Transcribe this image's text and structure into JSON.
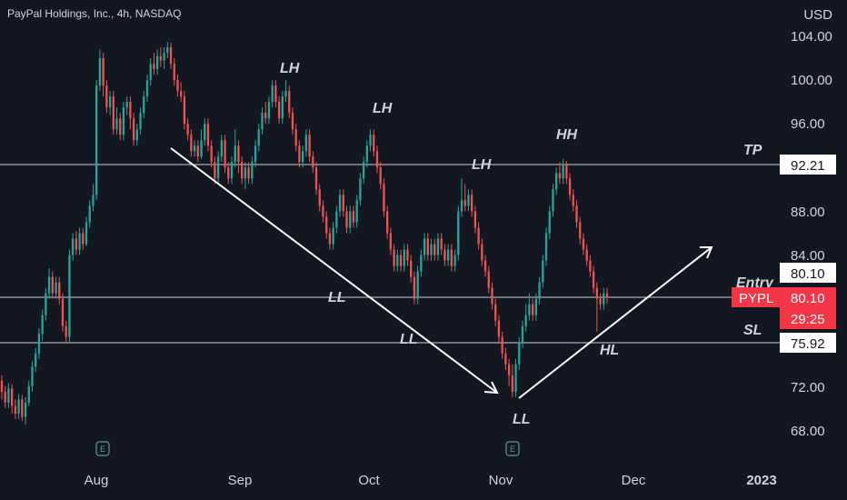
{
  "header": {
    "title": "PayPal Holdings, Inc., 4h, NASDAQ",
    "currency": "USD"
  },
  "chart_data": {
    "type": "candlestick",
    "ylim": [
      66.5,
      105.5
    ],
    "y_ticks": [
      "104.00",
      "100.00",
      "96.00",
      "88.00",
      "84.00",
      "72.00",
      "68.00"
    ],
    "x_ticks": [
      "Aug",
      "Sep",
      "Oct",
      "Nov",
      "Dec",
      "2023"
    ],
    "colors": {
      "up": "#26a69a",
      "down": "#ef5350",
      "background": "#131722",
      "level_line": "#c8ccd6",
      "arrow": "#ffffff",
      "accent_label": "#f23645"
    },
    "levels": [
      {
        "name": "TP",
        "value": 92.21,
        "label": "92.21"
      },
      {
        "name": "Entry",
        "value": 80.1,
        "label": "80.10"
      },
      {
        "name": "SL",
        "value": 75.92,
        "label": "75.92"
      }
    ],
    "symbol_badge": {
      "symbol": "PYPL",
      "price": "80.10",
      "countdown": "29:25"
    },
    "annotations": [
      "LH",
      "LH",
      "LH",
      "HH",
      "LL",
      "LL",
      "LL",
      "HL"
    ],
    "earnings_markers": [
      "E",
      "E"
    ],
    "candles": [
      [
        72.5,
        71.5,
        73.0,
        70.8
      ],
      [
        71.5,
        70.5,
        72.0,
        70.0
      ],
      [
        70.5,
        71.8,
        72.3,
        70.0
      ],
      [
        71.8,
        70.2,
        72.2,
        69.5
      ],
      [
        70.2,
        69.5,
        70.8,
        69.0
      ],
      [
        69.5,
        70.8,
        71.3,
        69.0
      ],
      [
        70.8,
        69.2,
        71.2,
        68.8
      ],
      [
        69.2,
        70.5,
        71.0,
        68.5
      ],
      [
        70.5,
        72.0,
        72.5,
        70.2
      ],
      [
        72.0,
        73.8,
        74.3,
        71.5
      ],
      [
        73.8,
        75.0,
        75.5,
        73.3
      ],
      [
        75.0,
        76.8,
        77.3,
        74.5
      ],
      [
        76.8,
        78.5,
        79.0,
        76.2
      ],
      [
        78.5,
        80.5,
        81.0,
        78.0
      ],
      [
        80.5,
        82.0,
        82.8,
        80.0
      ],
      [
        82.0,
        80.5,
        82.5,
        80.0
      ],
      [
        80.5,
        81.5,
        82.0,
        80.0
      ],
      [
        81.5,
        80.0,
        82.0,
        79.5
      ],
      [
        80.0,
        77.5,
        80.5,
        77.0
      ],
      [
        77.5,
        76.5,
        78.0,
        76.0
      ],
      [
        76.5,
        84.0,
        84.5,
        76.0
      ],
      [
        84.0,
        85.5,
        86.0,
        83.5
      ],
      [
        85.5,
        84.5,
        86.2,
        84.0
      ],
      [
        84.5,
        86.0,
        86.5,
        84.0
      ],
      [
        86.0,
        85.0,
        86.5,
        84.5
      ],
      [
        85.0,
        87.0,
        87.5,
        84.8
      ],
      [
        87.0,
        88.5,
        89.0,
        86.5
      ],
      [
        88.5,
        89.5,
        90.5,
        88.0
      ],
      [
        89.5,
        99.5,
        100.0,
        89.0
      ],
      [
        99.5,
        102.0,
        102.8,
        99.0
      ],
      [
        102.0,
        99.5,
        102.5,
        98.5
      ],
      [
        99.5,
        97.5,
        100.0,
        97.0
      ],
      [
        97.5,
        98.5,
        99.0,
        96.8
      ],
      [
        98.5,
        95.5,
        99.0,
        95.0
      ],
      [
        95.5,
        96.5,
        97.5,
        95.0
      ],
      [
        96.5,
        95.0,
        97.0,
        94.5
      ],
      [
        95.0,
        97.5,
        98.0,
        94.5
      ],
      [
        97.5,
        98.0,
        98.5,
        96.8
      ],
      [
        98.0,
        96.5,
        98.5,
        95.5
      ],
      [
        96.5,
        94.5,
        97.0,
        94.0
      ],
      [
        94.5,
        95.5,
        96.0,
        94.0
      ],
      [
        95.5,
        97.0,
        97.5,
        95.0
      ],
      [
        97.0,
        98.5,
        99.0,
        96.5
      ],
      [
        98.5,
        100.0,
        100.5,
        98.0
      ],
      [
        100.0,
        101.5,
        102.0,
        99.5
      ],
      [
        101.5,
        101.0,
        102.5,
        100.5
      ],
      [
        101.0,
        102.2,
        102.8,
        100.5
      ],
      [
        102.2,
        101.8,
        103.0,
        101.2
      ],
      [
        101.8,
        102.5,
        103.0,
        101.0
      ],
      [
        102.5,
        103.0,
        103.5,
        102.0
      ],
      [
        103.0,
        101.5,
        103.4,
        101.0
      ],
      [
        101.5,
        100.0,
        102.0,
        99.5
      ],
      [
        100.0,
        99.0,
        100.5,
        98.5
      ],
      [
        99.0,
        98.5,
        99.8,
        98.0
      ],
      [
        98.5,
        96.0,
        99.0,
        95.5
      ],
      [
        96.0,
        95.0,
        96.5,
        94.5
      ],
      [
        95.0,
        93.5,
        95.5,
        93.0
      ],
      [
        93.5,
        94.0,
        94.5,
        93.0
      ],
      [
        94.0,
        93.0,
        94.5,
        92.5
      ],
      [
        93.0,
        94.5,
        95.5,
        92.8
      ],
      [
        94.5,
        96.0,
        96.5,
        94.0
      ],
      [
        96.0,
        94.0,
        96.5,
        93.5
      ],
      [
        94.0,
        92.5,
        94.5,
        92.0
      ],
      [
        92.5,
        91.0,
        93.0,
        90.5
      ],
      [
        91.0,
        93.0,
        93.5,
        90.5
      ],
      [
        93.0,
        94.5,
        95.0,
        92.5
      ],
      [
        94.5,
        92.0,
        95.0,
        91.5
      ],
      [
        92.0,
        91.0,
        92.5,
        90.5
      ],
      [
        91.0,
        92.5,
        93.0,
        90.5
      ],
      [
        92.5,
        94.0,
        95.5,
        92.0
      ],
      [
        94.0,
        92.5,
        94.5,
        91.5
      ],
      [
        92.5,
        91.0,
        93.0,
        90.5
      ],
      [
        91.0,
        92.0,
        92.5,
        90.0
      ],
      [
        92.0,
        91.0,
        92.5,
        90.5
      ],
      [
        91.0,
        92.5,
        93.0,
        90.5
      ],
      [
        92.5,
        94.0,
        94.5,
        92.0
      ],
      [
        94.0,
        95.5,
        96.0,
        93.5
      ],
      [
        95.5,
        97.0,
        97.5,
        95.0
      ],
      [
        97.0,
        96.5,
        98.0,
        96.0
      ],
      [
        96.5,
        98.0,
        98.5,
        96.0
      ],
      [
        98.0,
        99.5,
        100.0,
        97.5
      ],
      [
        99.5,
        98.0,
        100.0,
        97.5
      ],
      [
        98.0,
        96.5,
        98.5,
        96.0
      ],
      [
        96.5,
        98.5,
        99.0,
        96.0
      ],
      [
        98.5,
        99.0,
        100.0,
        98.0
      ],
      [
        99.0,
        97.0,
        99.5,
        96.5
      ],
      [
        97.0,
        95.5,
        97.5,
        95.0
      ],
      [
        95.5,
        94.0,
        96.0,
        93.5
      ],
      [
        94.0,
        92.5,
        94.5,
        92.0
      ],
      [
        92.5,
        93.5,
        94.0,
        92.0
      ],
      [
        93.5,
        95.0,
        95.5,
        93.0
      ],
      [
        95.0,
        93.0,
        95.5,
        92.5
      ],
      [
        93.0,
        92.0,
        93.5,
        91.5
      ],
      [
        92.0,
        90.0,
        92.5,
        89.5
      ],
      [
        90.0,
        88.5,
        90.5,
        88.0
      ],
      [
        88.5,
        87.5,
        89.0,
        87.0
      ],
      [
        87.5,
        86.0,
        88.0,
        85.5
      ],
      [
        86.0,
        85.0,
        86.5,
        84.5
      ],
      [
        85.0,
        86.5,
        87.0,
        84.5
      ],
      [
        86.5,
        88.0,
        88.5,
        86.0
      ],
      [
        88.0,
        89.5,
        90.0,
        87.5
      ],
      [
        89.5,
        88.0,
        90.0,
        87.5
      ],
      [
        88.0,
        86.5,
        88.5,
        86.0
      ],
      [
        86.5,
        88.0,
        88.5,
        86.0
      ],
      [
        88.0,
        87.0,
        88.5,
        86.5
      ],
      [
        87.0,
        89.0,
        89.5,
        86.5
      ],
      [
        89.0,
        91.0,
        91.5,
        88.5
      ],
      [
        91.0,
        92.5,
        93.0,
        90.5
      ],
      [
        92.5,
        94.0,
        94.5,
        92.0
      ],
      [
        94.0,
        95.0,
        95.5,
        93.5
      ],
      [
        95.0,
        93.5,
        95.5,
        93.0
      ],
      [
        93.5,
        92.0,
        94.0,
        91.5
      ],
      [
        92.0,
        90.5,
        92.5,
        90.0
      ],
      [
        90.5,
        88.0,
        91.0,
        87.5
      ],
      [
        88.0,
        86.0,
        88.5,
        85.5
      ],
      [
        86.0,
        84.5,
        86.5,
        84.0
      ],
      [
        84.5,
        83.0,
        85.0,
        82.5
      ],
      [
        83.0,
        84.0,
        84.5,
        82.5
      ],
      [
        84.0,
        83.0,
        84.5,
        82.5
      ],
      [
        83.0,
        84.5,
        85.0,
        82.5
      ],
      [
        84.5,
        83.5,
        85.0,
        83.0
      ],
      [
        83.5,
        82.0,
        84.0,
        81.5
      ],
      [
        82.0,
        80.0,
        82.5,
        79.5
      ],
      [
        80.0,
        82.5,
        83.0,
        79.5
      ],
      [
        82.5,
        84.0,
        84.5,
        82.0
      ],
      [
        84.0,
        85.5,
        86.0,
        83.5
      ],
      [
        85.5,
        84.0,
        86.0,
        83.5
      ],
      [
        84.0,
        85.0,
        85.5,
        83.5
      ],
      [
        85.0,
        84.0,
        85.5,
        83.5
      ],
      [
        84.0,
        85.5,
        86.0,
        83.5
      ],
      [
        85.5,
        84.5,
        86.0,
        84.0
      ],
      [
        84.5,
        83.5,
        85.0,
        83.0
      ],
      [
        83.5,
        84.5,
        85.0,
        83.0
      ],
      [
        84.5,
        83.0,
        85.0,
        82.5
      ],
      [
        83.0,
        84.0,
        84.5,
        82.5
      ],
      [
        84.0,
        88.0,
        88.5,
        83.5
      ],
      [
        88.0,
        89.0,
        91.0,
        87.5
      ],
      [
        89.0,
        88.5,
        90.5,
        88.0
      ],
      [
        88.5,
        89.5,
        90.0,
        88.0
      ],
      [
        89.5,
        88.0,
        90.0,
        87.5
      ],
      [
        88.0,
        86.5,
        88.5,
        86.0
      ],
      [
        86.5,
        85.0,
        87.0,
        84.5
      ],
      [
        85.0,
        83.5,
        85.5,
        83.0
      ],
      [
        83.5,
        82.5,
        84.0,
        82.0
      ],
      [
        82.5,
        81.0,
        83.0,
        80.5
      ],
      [
        81.0,
        79.5,
        81.5,
        79.0
      ],
      [
        79.5,
        78.0,
        80.0,
        77.5
      ],
      [
        78.0,
        76.5,
        78.5,
        76.0
      ],
      [
        76.5,
        75.0,
        77.0,
        74.5
      ],
      [
        75.0,
        74.0,
        75.5,
        73.5
      ],
      [
        74.0,
        73.0,
        74.5,
        72.0
      ],
      [
        73.0,
        71.5,
        74.0,
        71.0
      ],
      [
        71.5,
        74.0,
        74.5,
        71.0
      ],
      [
        74.0,
        76.0,
        76.5,
        73.5
      ],
      [
        76.0,
        77.5,
        78.0,
        75.5
      ],
      [
        77.5,
        78.5,
        79.5,
        77.0
      ],
      [
        78.5,
        79.5,
        80.5,
        78.0
      ],
      [
        79.5,
        78.5,
        80.0,
        78.0
      ],
      [
        78.5,
        80.0,
        80.5,
        78.0
      ],
      [
        80.0,
        81.5,
        82.0,
        79.5
      ],
      [
        81.5,
        83.5,
        84.0,
        81.0
      ],
      [
        83.5,
        86.0,
        86.5,
        83.0
      ],
      [
        86.0,
        88.0,
        88.5,
        85.5
      ],
      [
        88.0,
        90.0,
        90.5,
        87.5
      ],
      [
        90.0,
        91.5,
        92.0,
        89.5
      ],
      [
        91.5,
        91.0,
        92.5,
        90.5
      ],
      [
        91.0,
        92.2,
        92.8,
        90.5
      ],
      [
        92.2,
        91.0,
        92.6,
        90.5
      ],
      [
        91.0,
        89.5,
        91.5,
        89.0
      ],
      [
        89.5,
        88.5,
        90.0,
        88.0
      ],
      [
        88.5,
        87.0,
        89.0,
        86.5
      ],
      [
        87.0,
        85.5,
        87.5,
        85.0
      ],
      [
        85.5,
        84.5,
        86.0,
        84.0
      ],
      [
        84.5,
        83.5,
        85.0,
        83.0
      ],
      [
        83.5,
        82.5,
        84.0,
        82.0
      ],
      [
        82.5,
        81.0,
        83.0,
        80.5
      ],
      [
        81.0,
        80.0,
        81.5,
        77.0
      ],
      [
        80.0,
        79.5,
        80.5,
        79.0
      ],
      [
        79.5,
        80.5,
        81.0,
        79.0
      ],
      [
        80.5,
        80.1,
        81.0,
        79.6
      ]
    ]
  }
}
